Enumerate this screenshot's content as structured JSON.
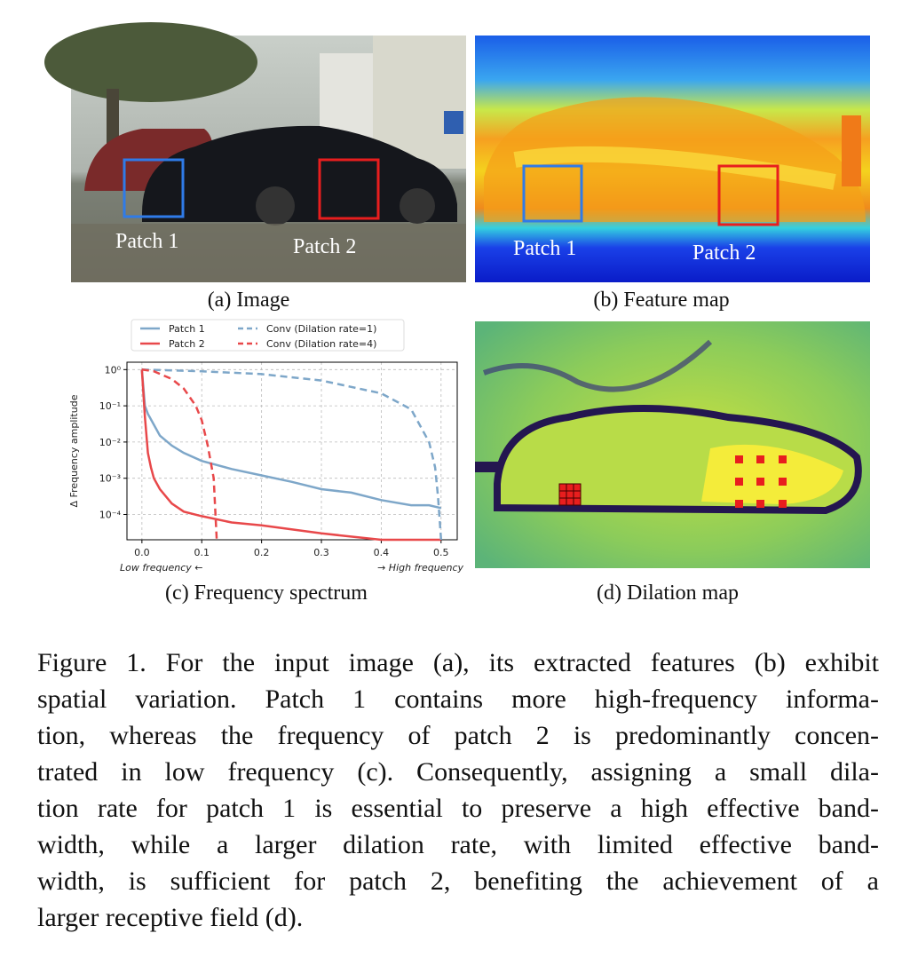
{
  "panels": [
    {
      "caption": "(a) Image",
      "labels": [
        "Patch 1",
        "Patch 2"
      ]
    },
    {
      "caption": "(b) Feature map",
      "labels": [
        "Patch 1",
        "Patch 2"
      ]
    },
    {
      "caption": "(c) Frequency spectrum"
    },
    {
      "caption": "(d) Dilation map"
    }
  ],
  "chart_data": {
    "type": "line",
    "y_label": "Δ Frequency amplitude",
    "annotations": [
      "Low frequency ←",
      "→ High frequency"
    ],
    "log_y": true,
    "grid": true,
    "xlim": [
      -0.025,
      0.527
    ],
    "ylim": [
      2e-05,
      1.6
    ],
    "xticks": [
      {
        "value": 0,
        "label": "0.0"
      },
      0.1,
      0.2,
      0.3,
      0.4,
      0.5
    ],
    "yticks": [
      {
        "value": 1,
        "label": "10⁰"
      },
      {
        "value": 0.1,
        "label": "10⁻¹"
      },
      {
        "value": 0.01,
        "label": "10⁻²"
      },
      {
        "value": 0.001,
        "label": "10⁻³"
      },
      {
        "value": 0.0001,
        "label": "10⁻⁴"
      }
    ],
    "series": [
      {
        "name": "Patch 1",
        "color": "#7ea7c9",
        "dashed": false,
        "x": [
          0,
          0.005,
          0.01,
          0.02,
          0.03,
          0.05,
          0.07,
          0.1,
          0.15,
          0.2,
          0.25,
          0.3,
          0.35,
          0.4,
          0.45,
          0.48,
          0.5
        ],
        "values": [
          1,
          0.1,
          0.06,
          0.03,
          0.015,
          0.008,
          0.005,
          0.003,
          0.0018,
          0.0012,
          0.0008,
          0.0005,
          0.0004,
          0.00025,
          0.00018,
          0.00018,
          0.00015
        ]
      },
      {
        "name": "Patch 2",
        "color": "#e8484a",
        "dashed": false,
        "x": [
          0,
          0.005,
          0.01,
          0.015,
          0.02,
          0.03,
          0.05,
          0.07,
          0.1,
          0.15,
          0.2,
          0.3,
          0.4,
          0.5
        ],
        "values": [
          1,
          0.05,
          0.005,
          0.002,
          0.001,
          0.0005,
          0.0002,
          0.00012,
          9e-05,
          6e-05,
          5e-05,
          3e-05,
          2e-05,
          2e-05
        ]
      },
      {
        "name": "Conv (Dilation rate=1)",
        "color": "#7ea7c9",
        "dashed": true,
        "x": [
          0,
          0.1,
          0.2,
          0.3,
          0.4,
          0.45,
          0.48,
          0.49,
          0.495,
          0.5
        ],
        "values": [
          1,
          0.9,
          0.75,
          0.5,
          0.22,
          0.08,
          0.01,
          0.002,
          0.0003,
          2e-05
        ]
      },
      {
        "name": "Conv (Dilation rate=4)",
        "color": "#e8484a",
        "dashed": true,
        "x": [
          0,
          0.02,
          0.05,
          0.07,
          0.09,
          0.1,
          0.11,
          0.12,
          0.125
        ],
        "values": [
          1,
          0.9,
          0.55,
          0.3,
          0.1,
          0.04,
          0.008,
          0.001,
          2e-05
        ]
      }
    ]
  },
  "caption": {
    "lines": [
      "Figure 1. For the input image (a), its extracted features (b) exhibit",
      "spatial variation. Patch 1 contains more high-frequency informa-",
      "tion, whereas the frequency of patch 2 is predominantly concen-",
      "trated in low frequency (c). Consequently, assigning a small dila-",
      "tion rate for patch 1 is essential to preserve a high effective band-",
      "width, while a larger dilation rate, with limited effective band-",
      "width, is sufficient for patch 2, benefiting the achievement of a",
      "larger receptive field (d)."
    ]
  }
}
